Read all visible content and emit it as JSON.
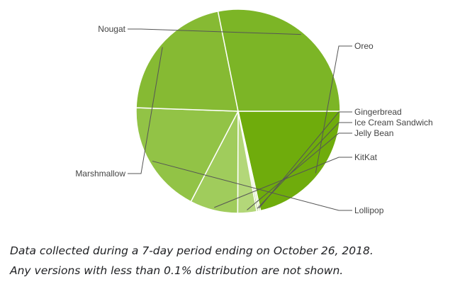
{
  "chart_data": {
    "type": "pie",
    "slices": [
      {
        "label": "Oreo",
        "value": 21.5,
        "color": "#6fac0c"
      },
      {
        "label": "Gingerbread",
        "value": 0.3,
        "color": "#cfe3a3"
      },
      {
        "label": "Ice Cream Sandwich",
        "value": 0.3,
        "color": "#bcd98a"
      },
      {
        "label": "Jelly Bean",
        "value": 3.0,
        "color": "#b3d779"
      },
      {
        "label": "KitKat",
        "value": 7.6,
        "color": "#a0cc5c"
      },
      {
        "label": "Lollipop",
        "value": 17.9,
        "color": "#92c346"
      },
      {
        "label": "Marshmallow",
        "value": 21.3,
        "color": "#86ba33"
      },
      {
        "label": "Nougat",
        "value": 28.2,
        "color": "#7cb526"
      }
    ]
  },
  "caption": {
    "line1": "Data collected during a 7-day period ending on October 26, 2018.",
    "line2": "Any versions with less than 0.1% distribution are not shown."
  }
}
